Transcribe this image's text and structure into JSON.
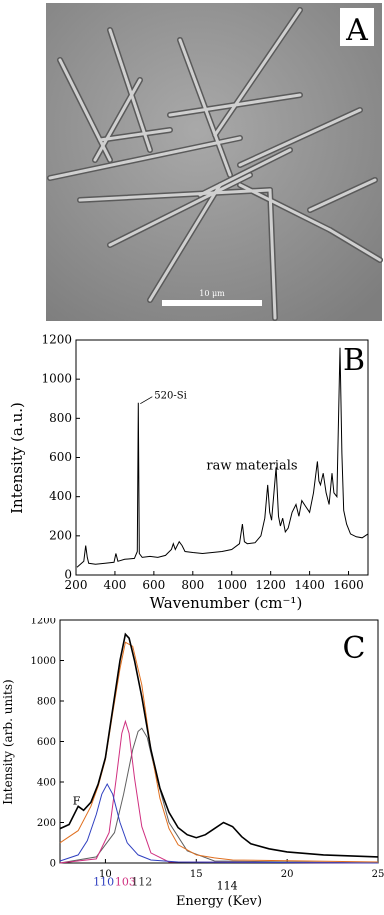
{
  "panelA": {
    "letter": "A",
    "scalebar_label": "10 μm"
  },
  "chart_data": [
    {
      "panel_letter": "B",
      "type": "line",
      "xlabel": "Wavenumber (cm⁻¹)",
      "ylabel": "Intensity (a.u.)",
      "xlim": [
        200,
        1700
      ],
      "ylim": [
        0,
        1200
      ],
      "xticks": [
        200,
        400,
        600,
        800,
        1000,
        1200,
        1400,
        1600
      ],
      "yticks": [
        0,
        200,
        400,
        600,
        800,
        1000,
        1200
      ],
      "annotations": [
        {
          "text": "520-Si",
          "x": 520,
          "y": 880
        },
        {
          "text": "raw materials",
          "x": 870,
          "y": 540
        }
      ],
      "series": [
        {
          "x": [
            205,
            240,
            250,
            258,
            265,
            300,
            350,
            395,
            405,
            415,
            450,
            500,
            515,
            520,
            525,
            540,
            580,
            620,
            660,
            690,
            700,
            710,
            730,
            745,
            760,
            800,
            850,
            900,
            950,
            1000,
            1040,
            1055,
            1065,
            1080,
            1120,
            1150,
            1170,
            1185,
            1195,
            1205,
            1215,
            1228,
            1240,
            1250,
            1262,
            1275,
            1290,
            1310,
            1330,
            1345,
            1360,
            1380,
            1400,
            1420,
            1440,
            1448,
            1456,
            1470,
            1485,
            1500,
            1515,
            1525,
            1540,
            1556,
            1566,
            1575,
            1590,
            1610,
            1640,
            1670,
            1700
          ],
          "y": [
            40,
            70,
            150,
            90,
            60,
            55,
            60,
            65,
            110,
            70,
            80,
            85,
            120,
            880,
            110,
            90,
            95,
            90,
            100,
            130,
            160,
            130,
            170,
            150,
            120,
            115,
            110,
            115,
            120,
            130,
            160,
            260,
            170,
            160,
            165,
            200,
            290,
            460,
            320,
            280,
            400,
            550,
            300,
            250,
            290,
            220,
            240,
            320,
            360,
            300,
            380,
            350,
            320,
            420,
            580,
            480,
            460,
            520,
            420,
            360,
            520,
            420,
            400,
            1160,
            620,
            330,
            260,
            210,
            195,
            190,
            210
          ]
        }
      ]
    },
    {
      "panel_letter": "C",
      "type": "line",
      "xlabel": "Energy (Kev)",
      "ylabel": "Intensity (arb. units)",
      "xlim": [
        7.5,
        25
      ],
      "ylim": [
        0,
        1200
      ],
      "xticks": [
        10,
        15,
        20,
        25
      ],
      "yticks": [
        0,
        200,
        400,
        600,
        800,
        1000,
        1200
      ],
      "annotations": [
        {
          "text": "F",
          "x": 8.2,
          "y": 290
        },
        {
          "text": "110",
          "x": 9.9,
          "y": -110
        },
        {
          "text": "103",
          "x": 11.1,
          "y": -110
        },
        {
          "text": "112",
          "x": 12.0,
          "y": -110
        },
        {
          "text": "114",
          "x": 16.7,
          "y": -130
        }
      ],
      "series": [
        {
          "color": "#000000",
          "x": [
            7.5,
            8.0,
            8.5,
            8.8,
            9.2,
            9.6,
            10.0,
            10.4,
            10.8,
            11.1,
            11.3,
            11.6,
            12.0,
            12.5,
            13.0,
            13.5,
            14.0,
            14.5,
            15.0,
            15.5,
            16.0,
            16.5,
            17.0,
            17.5,
            18.0,
            19.0,
            20.0,
            22.0,
            25.0
          ],
          "y": [
            170,
            190,
            280,
            260,
            300,
            390,
            520,
            760,
            1000,
            1130,
            1110,
            1000,
            820,
            560,
            370,
            250,
            175,
            140,
            125,
            140,
            170,
            200,
            180,
            130,
            95,
            70,
            55,
            40,
            30
          ]
        },
        {
          "color": "#e07020",
          "x": [
            7.5,
            8.5,
            9.2,
            9.6,
            10.0,
            10.4,
            10.8,
            11.1,
            11.5,
            12.0,
            12.5,
            13.0,
            13.5,
            14.0,
            15.0,
            16.0,
            17.0,
            25.0
          ],
          "y": [
            100,
            160,
            280,
            380,
            510,
            740,
            960,
            1090,
            1070,
            880,
            560,
            320,
            170,
            90,
            40,
            25,
            15,
            5
          ]
        },
        {
          "color": "#3040c0",
          "x": [
            7.5,
            8.5,
            9.0,
            9.5,
            9.8,
            10.1,
            10.4,
            10.8,
            11.2,
            11.8,
            12.5,
            14.0,
            25.0
          ],
          "y": [
            10,
            40,
            110,
            240,
            340,
            390,
            340,
            200,
            100,
            40,
            15,
            5,
            0
          ]
        },
        {
          "color": "#d03080",
          "x": [
            7.5,
            9.5,
            10.2,
            10.6,
            10.9,
            11.1,
            11.3,
            11.6,
            12.0,
            12.5,
            13.5,
            25.0
          ],
          "y": [
            0,
            20,
            150,
            420,
            640,
            700,
            640,
            420,
            180,
            50,
            5,
            0
          ]
        },
        {
          "color": "#606060",
          "x": [
            7.5,
            9.5,
            10.5,
            11.0,
            11.5,
            11.8,
            12.0,
            12.3,
            12.8,
            13.5,
            14.5,
            16.0,
            25.0
          ],
          "y": [
            0,
            30,
            150,
            340,
            560,
            650,
            665,
            620,
            430,
            200,
            60,
            10,
            0
          ]
        }
      ]
    }
  ]
}
